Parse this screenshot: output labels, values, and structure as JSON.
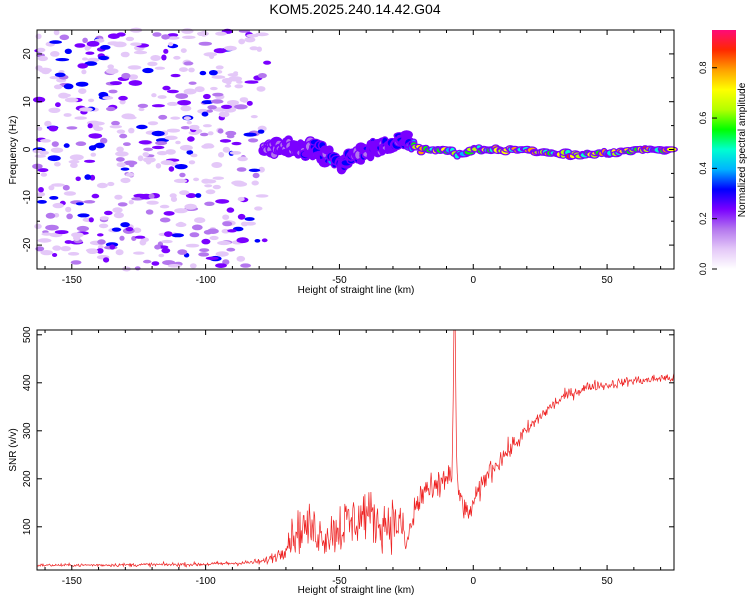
{
  "title": "KOM5.2025.240.14.42.G04",
  "colors": {
    "snr_line": "#ee2222",
    "frame": "#000000",
    "background": "#ffffff",
    "colormap": [
      "#ffffff",
      "#e4c8f8",
      "#b477ee",
      "#7a00ff",
      "#0000ff",
      "#00b4ff",
      "#00ffd0",
      "#00ff00",
      "#b4ff00",
      "#ffff00",
      "#ffa000",
      "#ff2800",
      "#ff0a78"
    ]
  },
  "chart_data": [
    {
      "type": "heatmap",
      "name": "spectrogram",
      "xlabel": "Height of straight line (km)",
      "ylabel": "Frequency (Hz)",
      "xlim": [
        -163,
        75
      ],
      "ylim": [
        -25,
        25
      ],
      "xticks": [
        -150,
        -100,
        -50,
        0,
        50
      ],
      "xticklabels": [
        "-150",
        "-100",
        "-50",
        "0",
        "50"
      ],
      "yticks": [
        -20,
        -10,
        0,
        10,
        20
      ],
      "yticklabels": [
        "-20",
        "-10",
        "0",
        "10",
        "20"
      ],
      "colorbar": {
        "label": "Normalized spectral amplitude",
        "range": [
          0,
          0.95
        ],
        "ticks": [
          0,
          0.2,
          0.4,
          0.6,
          0.8
        ],
        "ticklabels": [
          "0.0",
          "0.2",
          "0.4",
          "0.6",
          "0.8"
        ]
      },
      "noise_region": {
        "x": [
          -163,
          -77
        ],
        "amplitude": [
          0.05,
          0.35
        ]
      },
      "signal_track": {
        "x": [
          -78,
          -70,
          -65,
          -60,
          -55,
          -50,
          -45,
          -40,
          -35,
          -30,
          -25,
          -20,
          -15,
          -10,
          -5,
          0,
          10,
          20,
          30,
          40,
          50,
          60,
          70,
          75
        ],
        "freq": [
          0.5,
          0.5,
          -0.5,
          0,
          -1,
          -3,
          -1,
          -0.5,
          0.5,
          1,
          2,
          0,
          0,
          0,
          -1,
          0,
          0,
          0,
          -1,
          -1,
          -1,
          0,
          0,
          0
        ],
        "spread": [
          3,
          3,
          3,
          3,
          3,
          2.5,
          2.5,
          2.5,
          2.5,
          2.5,
          2,
          1.2,
          1,
          1,
          1,
          0.8,
          0.8,
          0.8,
          0.8,
          0.8,
          0.8,
          0.8,
          0.8,
          0.8
        ],
        "amplitude": [
          0.2,
          0.25,
          0.3,
          0.3,
          0.35,
          0.35,
          0.3,
          0.3,
          0.3,
          0.3,
          0.35,
          0.8,
          0.9,
          0.7,
          0.55,
          0.7,
          0.75,
          0.8,
          0.85,
          0.85,
          0.8,
          0.8,
          0.85,
          0.85
        ]
      }
    },
    {
      "type": "line",
      "name": "snr",
      "xlabel": "Height of straight line (km)",
      "ylabel": "SNR (v/v)",
      "xlim": [
        -163,
        75
      ],
      "ylim": [
        10,
        510
      ],
      "xticks": [
        -150,
        -100,
        -50,
        0,
        50
      ],
      "xticklabels": [
        "-150",
        "-100",
        "-50",
        "0",
        "50"
      ],
      "yticks": [
        100,
        200,
        300,
        400,
        500
      ],
      "yticklabels": [
        "100",
        "200",
        "300",
        "400",
        "500"
      ],
      "series": [
        {
          "name": "SNR",
          "x": [
            -163,
            -150,
            -120,
            -100,
            -85,
            -78,
            -72,
            -68,
            -63,
            -58,
            -55,
            -50,
            -45,
            -40,
            -35,
            -30,
            -27,
            -25,
            -22,
            -18,
            -15,
            -12,
            -10,
            -8,
            -7,
            -6,
            -4,
            -2,
            0,
            3,
            5,
            10,
            15,
            20,
            25,
            30,
            35,
            40,
            45,
            50,
            55,
            60,
            65,
            70,
            75
          ],
          "y": [
            20,
            20,
            21,
            22,
            25,
            28,
            45,
            80,
            100,
            90,
            80,
            100,
            110,
            130,
            105,
            110,
            105,
            60,
            130,
            180,
            170,
            190,
            210,
            200,
            510,
            180,
            150,
            120,
            150,
            180,
            210,
            240,
            270,
            300,
            330,
            355,
            375,
            385,
            395,
            395,
            400,
            405,
            405,
            410,
            410
          ],
          "amplitude": [
            3,
            3,
            4,
            4,
            5,
            7,
            15,
            35,
            50,
            45,
            40,
            60,
            55,
            55,
            50,
            55,
            50,
            25,
            45,
            40,
            30,
            35,
            40,
            30,
            0,
            40,
            30,
            20,
            20,
            25,
            25,
            22,
            20,
            18,
            15,
            14,
            12,
            12,
            11,
            10,
            10,
            10,
            10,
            10,
            10
          ]
        }
      ]
    }
  ]
}
